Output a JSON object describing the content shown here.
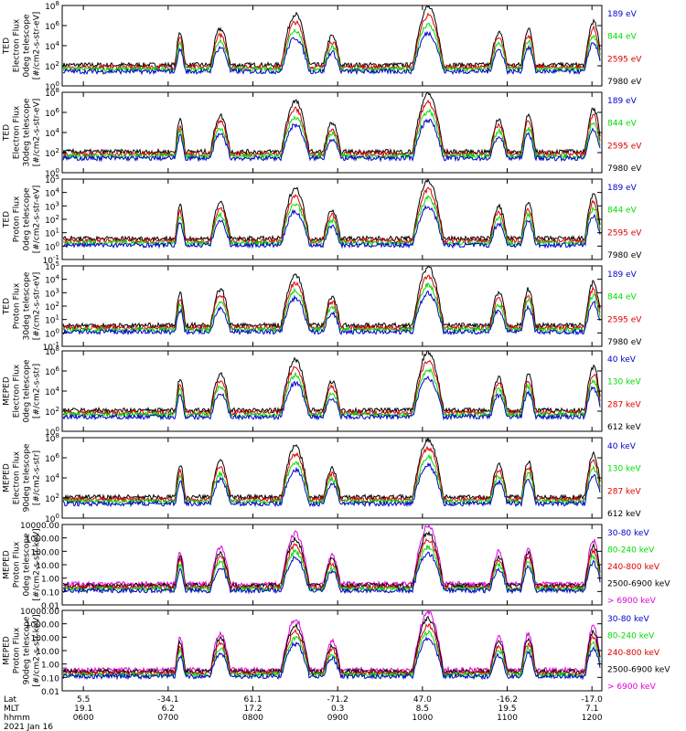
{
  "chart_data": [
    {
      "type": "line",
      "ylabel": [
        "TED",
        "Electron Flux",
        "0deg telescope",
        "[#/cm2-s-str-eV]"
      ],
      "yscale": "log",
      "ylim_exp": [
        0,
        8
      ],
      "yticks": [
        {
          "e": 0,
          "label": "10",
          "sup": "0"
        },
        {
          "e": 2,
          "label": "10",
          "sup": "2"
        },
        {
          "e": 4,
          "label": "10",
          "sup": "4"
        },
        {
          "e": 6,
          "label": "10",
          "sup": "6"
        },
        {
          "e": 8,
          "label": "10",
          "sup": "8"
        }
      ],
      "series": [
        {
          "name": "7980 eV",
          "color": "#000000"
        },
        {
          "name": "2595 eV",
          "color": "#dd0000"
        },
        {
          "name": "844 eV",
          "color": "#00dd00"
        },
        {
          "name": "189 eV",
          "color": "#0000cc"
        }
      ]
    },
    {
      "type": "line",
      "ylabel": [
        "TED",
        "Electron Flux",
        "30deg telescope",
        "[#/cm2-s-str-eV]"
      ],
      "yscale": "log",
      "ylim_exp": [
        0,
        8
      ],
      "yticks": [
        {
          "e": 0,
          "label": "10",
          "sup": "0"
        },
        {
          "e": 2,
          "label": "10",
          "sup": "2"
        },
        {
          "e": 4,
          "label": "10",
          "sup": "4"
        },
        {
          "e": 6,
          "label": "10",
          "sup": "6"
        },
        {
          "e": 8,
          "label": "10",
          "sup": "8"
        }
      ],
      "series": [
        {
          "name": "7980 eV",
          "color": "#000000"
        },
        {
          "name": "2595 eV",
          "color": "#dd0000"
        },
        {
          "name": "844 eV",
          "color": "#00dd00"
        },
        {
          "name": "189 eV",
          "color": "#0000cc"
        }
      ]
    },
    {
      "type": "line",
      "ylabel": [
        "TED",
        "Proton Flux",
        "0deg telescope",
        "[#/cm2-s-str-eV]"
      ],
      "yscale": "log",
      "ylim_exp": [
        -1,
        5
      ],
      "yticks": [
        {
          "e": -1,
          "label": "10",
          "sup": "-1"
        },
        {
          "e": 0,
          "label": "10",
          "sup": "0"
        },
        {
          "e": 1,
          "label": "10",
          "sup": "1"
        },
        {
          "e": 2,
          "label": "10",
          "sup": "2"
        },
        {
          "e": 3,
          "label": "10",
          "sup": "3"
        },
        {
          "e": 4,
          "label": "10",
          "sup": "4"
        },
        {
          "e": 5,
          "label": "10",
          "sup": "5"
        }
      ],
      "series": [
        {
          "name": "7980 eV",
          "color": "#000000"
        },
        {
          "name": "2595 eV",
          "color": "#dd0000"
        },
        {
          "name": "844 eV",
          "color": "#00dd00"
        },
        {
          "name": "189 eV",
          "color": "#0000cc"
        }
      ]
    },
    {
      "type": "line",
      "ylabel": [
        "TED",
        "Proton Flux",
        "30deg telescope",
        "[#/cm2-s-str-eV]"
      ],
      "yscale": "log",
      "ylim_exp": [
        -1,
        5
      ],
      "yticks": [
        {
          "e": -1,
          "label": "10",
          "sup": "-1"
        },
        {
          "e": 0,
          "label": "10",
          "sup": "0"
        },
        {
          "e": 1,
          "label": "10",
          "sup": "1"
        },
        {
          "e": 2,
          "label": "10",
          "sup": "2"
        },
        {
          "e": 3,
          "label": "10",
          "sup": "3"
        },
        {
          "e": 4,
          "label": "10",
          "sup": "4"
        },
        {
          "e": 5,
          "label": "10",
          "sup": "5"
        }
      ],
      "series": [
        {
          "name": "7980 eV",
          "color": "#000000"
        },
        {
          "name": "2595 eV",
          "color": "#dd0000"
        },
        {
          "name": "844 eV",
          "color": "#00dd00"
        },
        {
          "name": "189 eV",
          "color": "#0000cc"
        }
      ]
    },
    {
      "type": "line",
      "ylabel": [
        "MEPED",
        "Electron Flux",
        "0deg telescope",
        "[#/cm2-s-str]"
      ],
      "yscale": "log",
      "ylim_exp": [
        0,
        8
      ],
      "yticks": [
        {
          "e": 0,
          "label": "10",
          "sup": "0"
        },
        {
          "e": 2,
          "label": "10",
          "sup": "2"
        },
        {
          "e": 4,
          "label": "10",
          "sup": "4"
        },
        {
          "e": 6,
          "label": "10",
          "sup": "6"
        },
        {
          "e": 8,
          "label": "10",
          "sup": "8"
        }
      ],
      "series": [
        {
          "name": "612 keV",
          "color": "#000000"
        },
        {
          "name": "287 keV",
          "color": "#dd0000"
        },
        {
          "name": "130 keV",
          "color": "#00dd00"
        },
        {
          "name": "40 keV",
          "color": "#0000cc"
        }
      ]
    },
    {
      "type": "line",
      "ylabel": [
        "MEPED",
        "Electron Flux",
        "90deg telescope",
        "[#/cm2-s-str]"
      ],
      "yscale": "log",
      "ylim_exp": [
        0,
        8
      ],
      "yticks": [
        {
          "e": 0,
          "label": "10",
          "sup": "0"
        },
        {
          "e": 2,
          "label": "10",
          "sup": "2"
        },
        {
          "e": 4,
          "label": "10",
          "sup": "4"
        },
        {
          "e": 6,
          "label": "10",
          "sup": "6"
        },
        {
          "e": 8,
          "label": "10",
          "sup": "8"
        }
      ],
      "series": [
        {
          "name": "612 keV",
          "color": "#000000"
        },
        {
          "name": "287 keV",
          "color": "#dd0000"
        },
        {
          "name": "130 keV",
          "color": "#00dd00"
        },
        {
          "name": "40 keV",
          "color": "#0000cc"
        }
      ]
    },
    {
      "type": "line",
      "ylabel": [
        "MEPED",
        "Proton Flux",
        "0deg telescope",
        "[#/cm2-s-str-keV]"
      ],
      "yscale": "log",
      "ylim_exp": [
        -2,
        4
      ],
      "yticks": [
        {
          "e": -2,
          "label": "0.01"
        },
        {
          "e": -1,
          "label": "0.10"
        },
        {
          "e": 0,
          "label": "1.00"
        },
        {
          "e": 1,
          "label": "10.00"
        },
        {
          "e": 2,
          "label": "100.00"
        },
        {
          "e": 3,
          "label": "1000.00"
        },
        {
          "e": 4,
          "label": "10000.00"
        }
      ],
      "series": [
        {
          "name": "> 6900 keV",
          "color": "#dd00dd"
        },
        {
          "name": "2500-6900 keV",
          "color": "#000000"
        },
        {
          "name": "240-800 keV",
          "color": "#dd0000"
        },
        {
          "name": "80-240 keV",
          "color": "#00dd00"
        },
        {
          "name": "30-80 keV",
          "color": "#0000cc"
        }
      ]
    },
    {
      "type": "line",
      "ylabel": [
        "MEPED",
        "Proton Flux",
        "90deg telescope",
        "[#/cm2-s-str-keV]"
      ],
      "yscale": "log",
      "ylim_exp": [
        -2,
        4
      ],
      "yticks": [
        {
          "e": -2,
          "label": "0.01"
        },
        {
          "e": -1,
          "label": "0.10"
        },
        {
          "e": 0,
          "label": "1.00"
        },
        {
          "e": 1,
          "label": "10.00"
        },
        {
          "e": 2,
          "label": "100.00"
        },
        {
          "e": 3,
          "label": "1000.00"
        },
        {
          "e": 4,
          "label": "10000.00"
        }
      ],
      "series": [
        {
          "name": "> 6900 keV",
          "color": "#dd00dd"
        },
        {
          "name": "2500-6900 keV",
          "color": "#000000"
        },
        {
          "name": "240-800 keV",
          "color": "#dd0000"
        },
        {
          "name": "80-240 keV",
          "color": "#00dd00"
        },
        {
          "name": "30-80 keV",
          "color": "#0000cc"
        }
      ]
    }
  ],
  "x_axis": {
    "row_labels": [
      "Lat",
      "MLT",
      "hhmm"
    ],
    "date_label": "2021 Jan 16",
    "ticks": [
      {
        "t": 480,
        "lat": "5.5",
        "mlt": "19.1",
        "hhmm": "0600"
      },
      {
        "t": 540,
        "lat": "-34.1",
        "mlt": "6.2",
        "hhmm": "0700"
      },
      {
        "t": 600,
        "lat": "61.1",
        "mlt": "17.2",
        "hhmm": "0800"
      },
      {
        "t": 660,
        "lat": "-71.2",
        "mlt": "0.3",
        "hhmm": "0900"
      },
      {
        "t": 720,
        "lat": "47.0",
        "mlt": "8.5",
        "hhmm": "1000"
      },
      {
        "t": 780,
        "lat": "-16.2",
        "mlt": "19.5",
        "hhmm": "1100"
      },
      {
        "t": 840,
        "lat": "-17.0",
        "mlt": "7.1",
        "hhmm": "1200"
      }
    ]
  }
}
